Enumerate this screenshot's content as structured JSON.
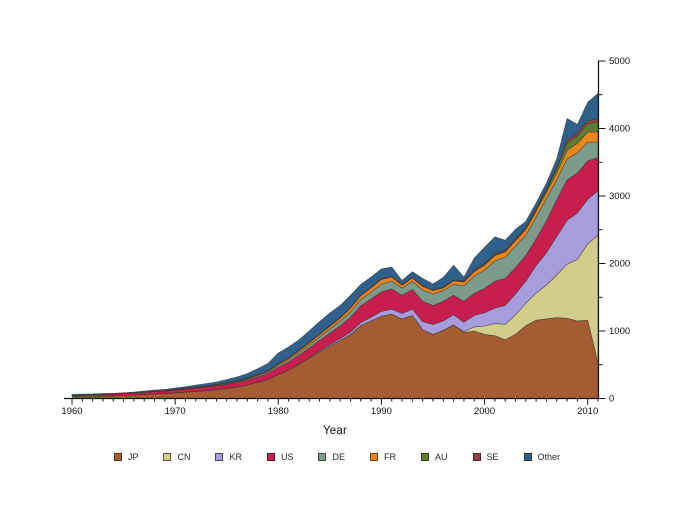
{
  "figure": {
    "background": "#ffffff"
  },
  "chart_data": {
    "type": "area",
    "stacked": true,
    "title": "",
    "xlabel": "Year",
    "ylabel": "",
    "xlim": [
      1960,
      2011
    ],
    "ylim": [
      0,
      5000
    ],
    "x_major_ticks": [
      1960,
      1970,
      1980,
      1990,
      2000,
      2010
    ],
    "x_minor_step": 1,
    "y_major_ticks": [
      0,
      1000,
      2000,
      3000,
      4000,
      5000
    ],
    "y_minor_step": 500,
    "y_axis_side": "right",
    "legend_position": "bottom",
    "grid": false,
    "x": [
      1960,
      1961,
      1962,
      1963,
      1964,
      1965,
      1966,
      1967,
      1968,
      1969,
      1970,
      1971,
      1972,
      1973,
      1974,
      1975,
      1976,
      1977,
      1978,
      1979,
      1980,
      1981,
      1982,
      1983,
      1984,
      1985,
      1986,
      1987,
      1988,
      1989,
      1990,
      1991,
      1992,
      1993,
      1994,
      1995,
      1996,
      1997,
      1998,
      1999,
      2000,
      2001,
      2002,
      2003,
      2004,
      2005,
      2006,
      2007,
      2008,
      2009,
      2010,
      2011
    ],
    "series": [
      {
        "name": "JP",
        "color": "#a55c33",
        "values": [
          30,
          32,
          35,
          38,
          40,
          45,
          50,
          60,
          70,
          75,
          85,
          95,
          105,
          115,
          130,
          150,
          170,
          200,
          240,
          280,
          355,
          420,
          510,
          600,
          690,
          775,
          860,
          950,
          1080,
          1150,
          1220,
          1250,
          1180,
          1230,
          1020,
          950,
          1010,
          1090,
          980,
          1000,
          950,
          930,
          870,
          950,
          1080,
          1160,
          1180,
          1200,
          1190,
          1150,
          1160,
          530
        ]
      },
      {
        "name": "CN",
        "color": "#d3cd8c",
        "values": [
          0,
          0,
          0,
          0,
          0,
          0,
          0,
          0,
          0,
          0,
          0,
          0,
          0,
          0,
          0,
          0,
          0,
          0,
          0,
          0,
          0,
          0,
          0,
          0,
          0,
          0,
          0,
          0,
          0,
          0,
          0,
          0,
          0,
          0,
          0,
          0,
          0,
          0,
          10,
          60,
          124,
          180,
          230,
          290,
          330,
          400,
          500,
          630,
          800,
          910,
          1130,
          1890
        ]
      },
      {
        "name": "KR",
        "color": "#a79ddd",
        "values": [
          0,
          0,
          0,
          0,
          0,
          0,
          0,
          0,
          0,
          0,
          0,
          0,
          0,
          0,
          0,
          0,
          0,
          0,
          0,
          0,
          0,
          0,
          3,
          8,
          15,
          22,
          28,
          35,
          45,
          55,
          70,
          75,
          80,
          95,
          120,
          148,
          140,
          150,
          140,
          170,
          197,
          230,
          280,
          310,
          330,
          410,
          480,
          570,
          650,
          690,
          660,
          660
        ]
      },
      {
        "name": "US",
        "color": "#c81e4f",
        "values": [
          20,
          22,
          22,
          24,
          25,
          26,
          28,
          30,
          33,
          35,
          38,
          42,
          48,
          52,
          55,
          60,
          65,
          70,
          80,
          90,
          110,
          120,
          130,
          140,
          155,
          172,
          190,
          220,
          250,
          270,
          290,
          300,
          270,
          290,
          300,
          280,
          290,
          290,
          310,
          330,
          360,
          400,
          400,
          390,
          380,
          395,
          470,
          545,
          600,
          590,
          570,
          490
        ]
      },
      {
        "name": "DE",
        "color": "#7d9b8d",
        "values": [
          2,
          2,
          2,
          3,
          3,
          3,
          4,
          4,
          5,
          5,
          6,
          7,
          8,
          9,
          10,
          11,
          13,
          15,
          18,
          20,
          25,
          30,
          35,
          45,
          50,
          60,
          70,
          80,
          90,
          100,
          115,
          115,
          105,
          120,
          165,
          170,
          160,
          160,
          230,
          250,
          271,
          300,
          310,
          320,
          300,
          320,
          330,
          295,
          310,
          300,
          280,
          230
        ]
      },
      {
        "name": "FR",
        "color": "#e8861c",
        "values": [
          2,
          2,
          2,
          2,
          2,
          3,
          3,
          3,
          4,
          4,
          5,
          5,
          6,
          6,
          7,
          8,
          9,
          10,
          12,
          14,
          20,
          24,
          28,
          30,
          35,
          40,
          45,
          55,
          60,
          65,
          70,
          60,
          45,
          50,
          55,
          50,
          40,
          55,
          55,
          70,
          75,
          80,
          80,
          80,
          85,
          90,
          90,
          100,
          130,
          140,
          150,
          150
        ]
      },
      {
        "name": "AU",
        "color": "#5b7f2d",
        "values": [
          0,
          0,
          0,
          0,
          1,
          1,
          1,
          1,
          1,
          1,
          1,
          1,
          1,
          1,
          1,
          1,
          2,
          2,
          2,
          2,
          2,
          2,
          2,
          2,
          3,
          3,
          3,
          3,
          3,
          3,
          3,
          3,
          3,
          3,
          3,
          3,
          4,
          4,
          5,
          6,
          8,
          10,
          10,
          12,
          15,
          25,
          35,
          60,
          100,
          110,
          120,
          150
        ]
      },
      {
        "name": "SE",
        "color": "#9a3c45",
        "values": [
          4,
          4,
          4,
          4,
          4,
          4,
          5,
          5,
          5,
          5,
          5,
          6,
          6,
          6,
          6,
          7,
          7,
          7,
          8,
          8,
          8,
          9,
          10,
          10,
          10,
          10,
          9,
          9,
          8,
          8,
          8,
          7,
          7,
          7,
          6,
          6,
          6,
          6,
          13,
          14,
          15,
          15,
          15,
          15,
          15,
          18,
          20,
          30,
          45,
          45,
          45,
          45
        ]
      },
      {
        "name": "Other",
        "color": "#2f608c",
        "values": [
          1,
          1,
          2,
          2,
          2,
          3,
          4,
          7,
          7,
          10,
          15,
          19,
          26,
          31,
          36,
          43,
          54,
          66,
          80,
          106,
          155,
          160,
          152,
          165,
          182,
          185,
          175,
          178,
          154,
          149,
          144,
          140,
          60,
          85,
          111,
          90,
          145,
          222,
          57,
          180,
          240,
          250,
          150,
          140,
          90,
          80,
          85,
          120,
          325,
          125,
          275,
          375
        ]
      }
    ]
  },
  "axes_text": {
    "x_tick_labels": [
      "1960",
      "1970",
      "1980",
      "1990",
      "2000",
      "2010"
    ],
    "y_tick_labels": [
      "0",
      "1000",
      "2000",
      "3000",
      "4000",
      "5000"
    ]
  },
  "legend": {
    "items": [
      {
        "label": "JP",
        "color": "#a55c33"
      },
      {
        "label": "CN",
        "color": "#d3cd8c"
      },
      {
        "label": "KR",
        "color": "#a79ddd"
      },
      {
        "label": "US",
        "color": "#c81e4f"
      },
      {
        "label": "DE",
        "color": "#7d9b8d"
      },
      {
        "label": "FR",
        "color": "#e8861c"
      },
      {
        "label": "AU",
        "color": "#5b7f2d"
      },
      {
        "label": "SE",
        "color": "#9a3c45"
      },
      {
        "label": "Other",
        "color": "#2f608c"
      }
    ]
  }
}
